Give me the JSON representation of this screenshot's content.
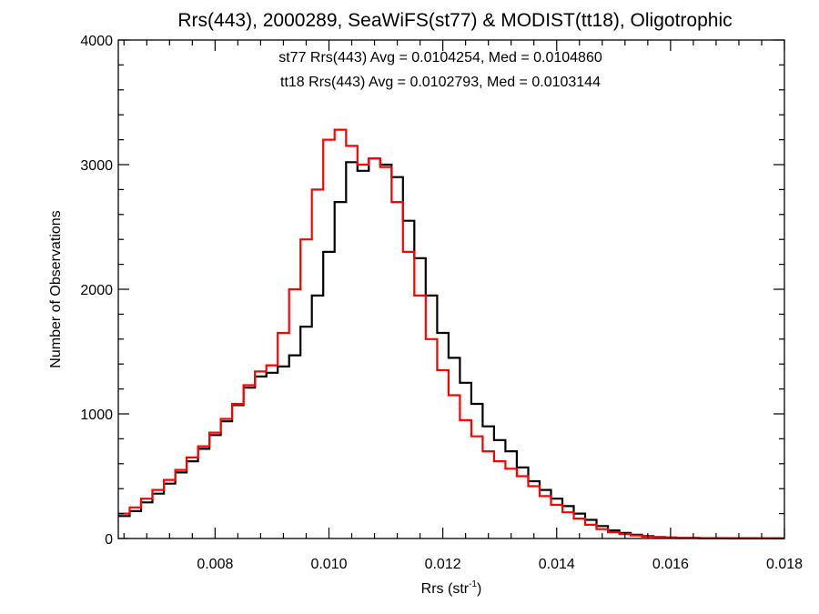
{
  "chart_data": {
    "type": "line",
    "title": "Rrs(443), 2000289, SeaWiFS(st77) & MODIST(tt18), Oligotrophic",
    "xlabel": "Rrs (str",
    "xlabel_sup": "-1",
    "xlabel_end": ")",
    "ylabel": "Number of Observations",
    "xlim": [
      0.0063,
      0.018
    ],
    "ylim": [
      0,
      4000
    ],
    "x_ticks": [
      0.008,
      0.01,
      0.012,
      0.014,
      0.016,
      0.018
    ],
    "x_tick_labels": [
      "0.008",
      "0.010",
      "0.012",
      "0.014",
      "0.016",
      "0.018"
    ],
    "y_ticks": [
      0,
      1000,
      2000,
      3000,
      4000
    ],
    "y_tick_labels": [
      "0",
      "1000",
      "2000",
      "3000",
      "4000"
    ],
    "grid": false,
    "step_histogram": true,
    "annotations": [
      {
        "text": "st77 Rrs(443) Avg = 0.0104254, Med = 0.0104860",
        "color": "#000000"
      },
      {
        "text": "tt18 Rrs(443) Avg = 0.0102793, Med = 0.0103144",
        "color": "#ff0000"
      }
    ],
    "series": [
      {
        "color": "#000000",
        "points": [
          [
            0.0063,
            180
          ],
          [
            0.0065,
            220
          ],
          [
            0.0067,
            290
          ],
          [
            0.0069,
            360
          ],
          [
            0.0071,
            440
          ],
          [
            0.0073,
            530
          ],
          [
            0.0075,
            620
          ],
          [
            0.0077,
            720
          ],
          [
            0.0079,
            830
          ],
          [
            0.0081,
            940
          ],
          [
            0.0083,
            1070
          ],
          [
            0.0085,
            1210
          ],
          [
            0.0087,
            1300
          ],
          [
            0.0089,
            1330
          ],
          [
            0.0091,
            1380
          ],
          [
            0.0093,
            1470
          ],
          [
            0.0095,
            1700
          ],
          [
            0.0097,
            1950
          ],
          [
            0.0099,
            2300
          ],
          [
            0.0101,
            2700
          ],
          [
            0.0103,
            3020
          ],
          [
            0.0105,
            2950
          ],
          [
            0.0107,
            3050
          ],
          [
            0.0109,
            3000
          ],
          [
            0.0111,
            2900
          ],
          [
            0.0113,
            2550
          ],
          [
            0.0115,
            2250
          ],
          [
            0.0117,
            1950
          ],
          [
            0.0119,
            1650
          ],
          [
            0.0121,
            1450
          ],
          [
            0.0123,
            1250
          ],
          [
            0.0125,
            1080
          ],
          [
            0.0127,
            900
          ],
          [
            0.0129,
            790
          ],
          [
            0.0131,
            700
          ],
          [
            0.0133,
            570
          ],
          [
            0.0135,
            460
          ],
          [
            0.0137,
            390
          ],
          [
            0.0139,
            320
          ],
          [
            0.0141,
            260
          ],
          [
            0.0143,
            200
          ],
          [
            0.0145,
            150
          ],
          [
            0.0147,
            100
          ],
          [
            0.0149,
            65
          ],
          [
            0.0151,
            45
          ],
          [
            0.0153,
            30
          ],
          [
            0.0155,
            20
          ],
          [
            0.0157,
            12
          ],
          [
            0.0159,
            8
          ],
          [
            0.0161,
            5
          ],
          [
            0.0165,
            3
          ],
          [
            0.017,
            2
          ],
          [
            0.0175,
            1
          ],
          [
            0.018,
            1
          ]
        ]
      },
      {
        "color": "#ff0000",
        "points": [
          [
            0.0063,
            200
          ],
          [
            0.0065,
            250
          ],
          [
            0.0067,
            320
          ],
          [
            0.0069,
            390
          ],
          [
            0.0071,
            470
          ],
          [
            0.0073,
            550
          ],
          [
            0.0075,
            650
          ],
          [
            0.0077,
            740
          ],
          [
            0.0079,
            850
          ],
          [
            0.0081,
            960
          ],
          [
            0.0083,
            1080
          ],
          [
            0.0085,
            1230
          ],
          [
            0.0087,
            1340
          ],
          [
            0.0089,
            1390
          ],
          [
            0.0091,
            1650
          ],
          [
            0.0093,
            2000
          ],
          [
            0.0095,
            2400
          ],
          [
            0.0097,
            2800
          ],
          [
            0.0099,
            3200
          ],
          [
            0.0101,
            3280
          ],
          [
            0.0103,
            3150
          ],
          [
            0.0105,
            3000
          ],
          [
            0.0107,
            3050
          ],
          [
            0.0109,
            2980
          ],
          [
            0.0111,
            2700
          ],
          [
            0.0113,
            2300
          ],
          [
            0.0115,
            1950
          ],
          [
            0.0117,
            1600
          ],
          [
            0.0119,
            1350
          ],
          [
            0.0121,
            1150
          ],
          [
            0.0123,
            950
          ],
          [
            0.0125,
            820
          ],
          [
            0.0127,
            700
          ],
          [
            0.0129,
            620
          ],
          [
            0.0131,
            560
          ],
          [
            0.0133,
            500
          ],
          [
            0.0135,
            420
          ],
          [
            0.0137,
            340
          ],
          [
            0.0139,
            270
          ],
          [
            0.0141,
            210
          ],
          [
            0.0143,
            160
          ],
          [
            0.0145,
            110
          ],
          [
            0.0147,
            75
          ],
          [
            0.0149,
            50
          ],
          [
            0.0151,
            35
          ],
          [
            0.0153,
            25
          ],
          [
            0.0155,
            15
          ],
          [
            0.0157,
            10
          ],
          [
            0.0159,
            6
          ],
          [
            0.0161,
            4
          ],
          [
            0.0165,
            2
          ],
          [
            0.017,
            1
          ],
          [
            0.0175,
            1
          ],
          [
            0.018,
            1
          ]
        ]
      }
    ]
  }
}
